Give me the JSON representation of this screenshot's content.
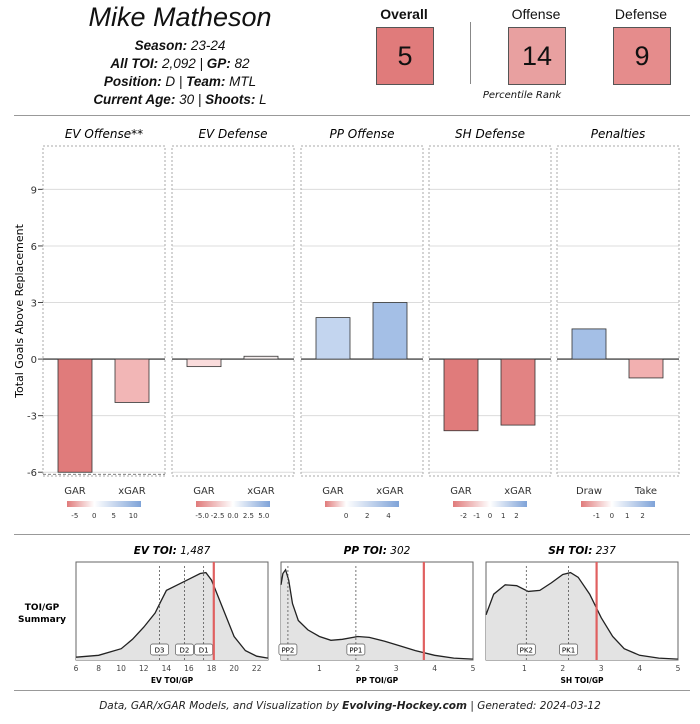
{
  "header": {
    "player_name": "Mike Matheson",
    "season_label": "Season:",
    "season": "23-24",
    "toi_label": "All TOI:",
    "toi": "2,092",
    "gp_label": "GP:",
    "gp": "82",
    "position_label": "Position:",
    "position": "D",
    "team_label": "Team:",
    "team": "MTL",
    "age_label": "Current Age:",
    "age": "30",
    "shoots_label": "Shoots:",
    "shoots": "L"
  },
  "percentiles": {
    "overall_label": "Overall",
    "overall": "5",
    "offense_label": "Offense",
    "offense": "14",
    "defense_label": "Defense",
    "defense": "9",
    "caption": "Percentile Rank",
    "colors": {
      "overall": "#e07b7b",
      "offense": "#e8a0a0",
      "defense": "#e58c8c"
    }
  },
  "chart_data": [
    {
      "type": "bar",
      "ylabel": "Total Goals Above Replacement",
      "ylim": [
        -6.2,
        11.3
      ],
      "yticks": [
        -6,
        -3,
        0,
        3,
        6,
        9
      ],
      "grid": true,
      "panels": [
        {
          "title": "EV Offense**",
          "categories": [
            "GAR",
            "xGAR"
          ],
          "values": [
            -6.0,
            -2.3
          ],
          "colors": [
            "#e07b7b",
            "#f2b6b6"
          ],
          "scale_ticks": [
            "-5",
            "0",
            "5",
            "10"
          ],
          "scale_range": [
            -7,
            12
          ]
        },
        {
          "title": "EV Defense",
          "categories": [
            "GAR",
            "xGAR"
          ],
          "values": [
            -0.4,
            0.15
          ],
          "colors": [
            "#fadcdc",
            "#f4eded"
          ],
          "scale_ticks": [
            "-5.0",
            "-2.5",
            "0.0",
            "2.5",
            "5.0"
          ],
          "scale_range": [
            -6,
            6
          ]
        },
        {
          "title": "PP Offense",
          "categories": [
            "GAR",
            "xGAR"
          ],
          "values": [
            2.2,
            3.0
          ],
          "colors": [
            "#c3d5ef",
            "#a4bfe6"
          ],
          "scale_ticks": [
            "0",
            "2",
            "4"
          ],
          "scale_range": [
            -2,
            5
          ]
        },
        {
          "title": "SH Defense",
          "categories": [
            "GAR",
            "xGAR"
          ],
          "values": [
            -3.8,
            -3.5
          ],
          "colors": [
            "#e07b7b",
            "#e28383"
          ],
          "scale_ticks": [
            "-2",
            "-1",
            "0",
            "1",
            "2"
          ],
          "scale_range": [
            -2.8,
            2.8
          ]
        },
        {
          "title": "Penalties",
          "categories": [
            "Draw",
            "Take"
          ],
          "values": [
            1.6,
            -1.0
          ],
          "colors": [
            "#a4bfe6",
            "#f2b0b0"
          ],
          "scale_ticks": [
            "-1",
            "0",
            "1",
            "2"
          ],
          "scale_range": [
            -2,
            2.8
          ]
        }
      ]
    },
    {
      "type": "area",
      "side_label_1": "TOI/GP",
      "side_label_2": "Summary",
      "panels": [
        {
          "title_bold": "EV TOI:",
          "title_value": "1,487",
          "xlabel": "EV TOI/GP",
          "xlim": [
            6,
            23
          ],
          "xticks": [
            6,
            8,
            10,
            12,
            14,
            16,
            18,
            20,
            22
          ],
          "density": [
            [
              6,
              0.03
            ],
            [
              8,
              0.05
            ],
            [
              10,
              0.12
            ],
            [
              11,
              0.22
            ],
            [
              12,
              0.35
            ],
            [
              13,
              0.5
            ],
            [
              13.5,
              0.62
            ],
            [
              14,
              0.74
            ],
            [
              15,
              0.8
            ],
            [
              16,
              0.86
            ],
            [
              17,
              0.92
            ],
            [
              17.5,
              0.93
            ],
            [
              18,
              0.85
            ],
            [
              18.5,
              0.7
            ],
            [
              19,
              0.55
            ],
            [
              20,
              0.25
            ],
            [
              21,
              0.1
            ],
            [
              22,
              0.04
            ],
            [
              23,
              0.02
            ]
          ],
          "markers": [
            {
              "label": "D3",
              "x": 13.4
            },
            {
              "label": "D2",
              "x": 15.6
            },
            {
              "label": "D1",
              "x": 17.3
            }
          ],
          "player_x": 18.2
        },
        {
          "title_bold": "PP TOI:",
          "title_value": "302",
          "xlabel": "PP TOI/GP",
          "xlim": [
            0,
            5
          ],
          "xticks": [
            1,
            2,
            3,
            4,
            5
          ],
          "density": [
            [
              0,
              0.8
            ],
            [
              0.05,
              0.92
            ],
            [
              0.12,
              0.96
            ],
            [
              0.2,
              0.85
            ],
            [
              0.3,
              0.6
            ],
            [
              0.45,
              0.42
            ],
            [
              0.7,
              0.32
            ],
            [
              1.0,
              0.25
            ],
            [
              1.3,
              0.21
            ],
            [
              1.6,
              0.22
            ],
            [
              2.0,
              0.25
            ],
            [
              2.3,
              0.24
            ],
            [
              2.7,
              0.2
            ],
            [
              3.1,
              0.15
            ],
            [
              3.5,
              0.1
            ],
            [
              4.0,
              0.05
            ],
            [
              4.5,
              0.02
            ],
            [
              5,
              0.01
            ]
          ],
          "markers": [
            {
              "label": "PP2",
              "x": 0.18
            },
            {
              "label": "PP1",
              "x": 1.95
            }
          ],
          "player_x": 3.72
        },
        {
          "title_bold": "SH TOI:",
          "title_value": "237",
          "xlabel": "SH TOI/GP",
          "xlim": [
            0,
            5
          ],
          "xticks": [
            1,
            2,
            3,
            4,
            5
          ],
          "density": [
            [
              0,
              0.48
            ],
            [
              0.2,
              0.7
            ],
            [
              0.5,
              0.8
            ],
            [
              0.8,
              0.79
            ],
            [
              1.1,
              0.73
            ],
            [
              1.4,
              0.74
            ],
            [
              1.7,
              0.82
            ],
            [
              2.0,
              0.91
            ],
            [
              2.2,
              0.93
            ],
            [
              2.4,
              0.88
            ],
            [
              2.7,
              0.7
            ],
            [
              3.0,
              0.45
            ],
            [
              3.3,
              0.25
            ],
            [
              3.6,
              0.12
            ],
            [
              4.0,
              0.05
            ],
            [
              4.5,
              0.02
            ],
            [
              5,
              0.01
            ]
          ],
          "markers": [
            {
              "label": "PK2",
              "x": 1.05
            },
            {
              "label": "PK1",
              "x": 2.15
            }
          ],
          "player_x": 2.88
        }
      ]
    }
  ],
  "footer": {
    "prefix": "Data, GAR/xGAR Models, and Visualization by",
    "brand": "Evolving-Hockey.com",
    "generated": "| Generated: 2024-03-12"
  }
}
